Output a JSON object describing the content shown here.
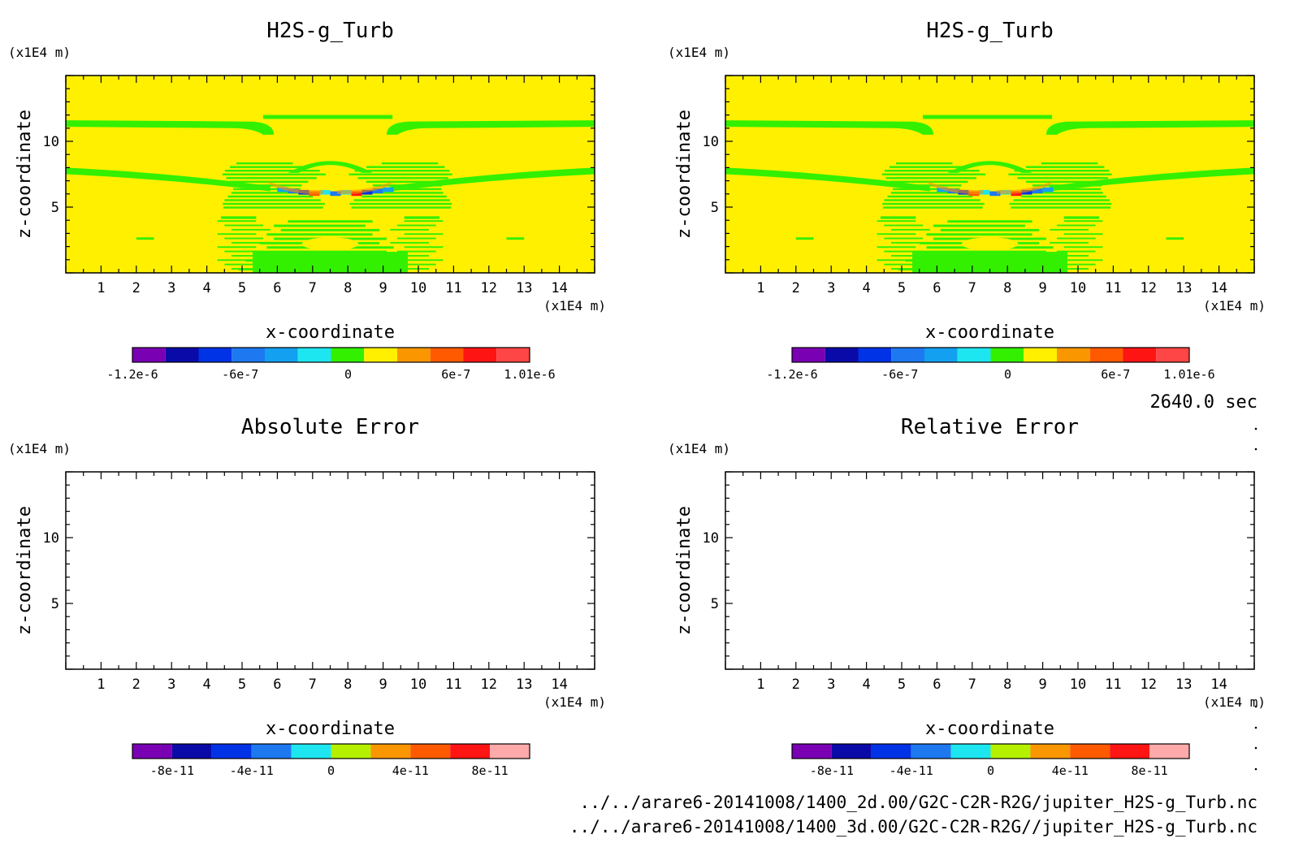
{
  "time_label": "2640.0 sec",
  "files": [
    "../../arare6-20141008/1400_2d.00/G2C-C2R-R2G/jupiter_H2S-g_Turb.nc",
    "../../arare6-20141008/1400_3d.00/G2C-C2R-R2G//jupiter_H2S-g_Turb.nc"
  ],
  "colors": {
    "field_palette": [
      "#7a00b4",
      "#0a0aa8",
      "#0032e6",
      "#1e78f0",
      "#14a0f0",
      "#1ee6f0",
      "#32f000",
      "#fff000",
      "#fa9600",
      "#ff5a00",
      "#ff1414",
      "#ff4646"
    ],
    "error_palette": [
      "#7a00b4",
      "#0a0aa8",
      "#0032e6",
      "#1e78f0",
      "#1ee6f0",
      "#b4f000",
      "#fa9600",
      "#ff5a00",
      "#ff1414",
      "#ffaaaa"
    ]
  },
  "chart_data": [
    {
      "type": "heatmap",
      "title": "H2S-g_Turb",
      "xlabel": "x-coordinate",
      "ylabel": "z-coordinate",
      "x_unit": "(x1E4 m)",
      "y_unit": "(x1E4 m)",
      "x_ticks": [
        "1",
        "2",
        "3",
        "4",
        "5",
        "6",
        "7",
        "8",
        "9",
        "10",
        "11",
        "12",
        "13",
        "14"
      ],
      "y_ticks": [
        "5",
        "10"
      ],
      "xlim": [
        0,
        15
      ],
      "ylim": [
        0,
        15
      ],
      "colorbar_labels": [
        "-1.2e-6",
        "-6e-7",
        "0",
        "6e-7",
        "1.01e-6"
      ],
      "colorbar_ticks": [
        -1.2e-06,
        -6e-07,
        0,
        6e-07,
        1.01e-06
      ],
      "colorbar_range": [
        -1.2e-06,
        1.01e-06
      ],
      "background_value": 0.0
    },
    {
      "type": "heatmap",
      "title": "H2S-g_Turb",
      "xlabel": "x-coordinate",
      "ylabel": "z-coordinate",
      "x_unit": "(x1E4 m)",
      "y_unit": "(x1E4 m)",
      "x_ticks": [
        "1",
        "2",
        "3",
        "4",
        "5",
        "6",
        "7",
        "8",
        "9",
        "10",
        "11",
        "12",
        "13",
        "14"
      ],
      "y_ticks": [
        "5",
        "10"
      ],
      "xlim": [
        0,
        15
      ],
      "ylim": [
        0,
        15
      ],
      "colorbar_labels": [
        "-1.2e-6",
        "-6e-7",
        "0",
        "6e-7",
        "1.01e-6"
      ],
      "colorbar_ticks": [
        -1.2e-06,
        -6e-07,
        0,
        6e-07,
        1.01e-06
      ],
      "colorbar_range": [
        -1.2e-06,
        1.01e-06
      ],
      "background_value": 0.0
    },
    {
      "type": "heatmap",
      "title": "Absolute Error",
      "xlabel": "x-coordinate",
      "ylabel": "z-coordinate",
      "x_unit": "(x1E4 m)",
      "y_unit": "(x1E4 m)",
      "x_ticks": [
        "1",
        "2",
        "3",
        "4",
        "5",
        "6",
        "7",
        "8",
        "9",
        "10",
        "11",
        "12",
        "13",
        "14"
      ],
      "y_ticks": [
        "5",
        "10"
      ],
      "xlim": [
        0,
        15
      ],
      "ylim": [
        0,
        15
      ],
      "colorbar_labels": [
        "-8e-11",
        "-4e-11",
        "0",
        "4e-11",
        "8e-11"
      ],
      "colorbar_ticks": [
        -8e-11,
        -4e-11,
        0,
        4e-11,
        8e-11
      ],
      "colorbar_range": [
        -1e-10,
        1e-10
      ],
      "empty": true
    },
    {
      "type": "heatmap",
      "title": "Relative Error",
      "xlabel": "x-coordinate",
      "ylabel": "z-coordinate",
      "x_unit": "(x1E4 m)",
      "y_unit": "(x1E4 m)",
      "x_ticks": [
        "1",
        "2",
        "3",
        "4",
        "5",
        "6",
        "7",
        "8",
        "9",
        "10",
        "11",
        "12",
        "13",
        "14"
      ],
      "y_ticks": [
        "5",
        "10"
      ],
      "xlim": [
        0,
        15
      ],
      "ylim": [
        0,
        15
      ],
      "colorbar_labels": [
        "-8e-11",
        "-4e-11",
        "0",
        "4e-11",
        "8e-11"
      ],
      "colorbar_ticks": [
        -8e-11,
        -4e-11,
        0,
        4e-11,
        8e-11
      ],
      "colorbar_range": [
        -1e-10,
        1e-10
      ],
      "empty": true
    }
  ]
}
